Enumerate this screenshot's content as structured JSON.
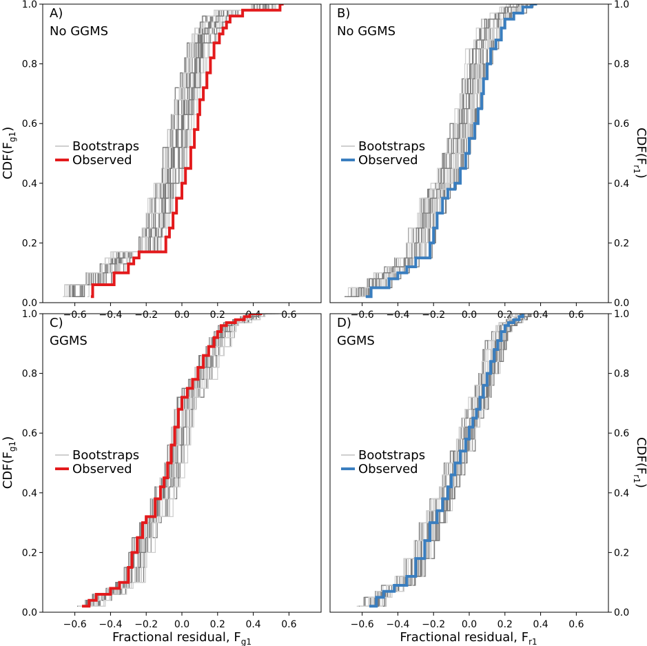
{
  "shared": {
    "xlabel": "Fractional residual, F",
    "xticks": [
      -0.6,
      -0.4,
      -0.2,
      0.0,
      0.2,
      0.4,
      0.6
    ],
    "xtick_labels": [
      "−0.6",
      "−0.4",
      "−0.2",
      "0.0",
      "0.2",
      "0.4",
      "0.6"
    ],
    "yticks": [
      0.0,
      0.2,
      0.4,
      0.6,
      0.8,
      1.0
    ],
    "ytick_labels": [
      "0.0",
      "0.2",
      "0.4",
      "0.6",
      "0.8",
      "1.0"
    ],
    "xlim": [
      -0.78,
      0.78
    ],
    "ylim": [
      0.0,
      1.0
    ],
    "legend": {
      "bootstraps": "Bootstraps",
      "observed": "Observed"
    },
    "colors": {
      "red": "#e31a1c",
      "blue": "#3a7ebf",
      "boot_dark": "#7a7a7a",
      "boot_light": "#cfcfcf"
    }
  },
  "chart_data": [
    {
      "panel": "A",
      "label": "A)",
      "subtitle": "No GGMS",
      "type": "line",
      "ylabel": "CDF(F",
      "ylabel_sub": "g1",
      "ylabel_end": ")",
      "xlabel_sub": "g1",
      "observed_color": "#e31a1c",
      "series": [
        {
          "name": "Observed",
          "x": [
            -0.51,
            -0.5,
            -0.45,
            -0.38,
            -0.36,
            -0.3,
            -0.27,
            -0.24,
            -0.2,
            -0.09,
            -0.07,
            -0.05,
            -0.03,
            0.0,
            0.02,
            0.05,
            0.07,
            0.09,
            0.1,
            0.12,
            0.14,
            0.16,
            0.18,
            0.21,
            0.23,
            0.25,
            0.27,
            0.3,
            0.34,
            0.38,
            0.45,
            0.48,
            0.55,
            0.57
          ],
          "y": [
            0.02,
            0.06,
            0.06,
            0.1,
            0.1,
            0.13,
            0.15,
            0.17,
            0.17,
            0.22,
            0.25,
            0.3,
            0.35,
            0.4,
            0.45,
            0.52,
            0.58,
            0.63,
            0.68,
            0.72,
            0.77,
            0.82,
            0.87,
            0.9,
            0.92,
            0.94,
            0.96,
            0.96,
            0.98,
            0.98,
            0.98,
            0.98,
            1.0,
            1.0
          ]
        }
      ],
      "bootstrap": {
        "count": 28,
        "center_shift": -0.08,
        "spread": 0.06
      }
    },
    {
      "panel": "B",
      "label": "B)",
      "subtitle": "No GGMS",
      "type": "line",
      "ylabel": "CDF(F",
      "ylabel_sub": "r1",
      "ylabel_end": ")",
      "xlabel_sub": "r1",
      "observed_color": "#3a7ebf",
      "series": [
        {
          "name": "Observed",
          "x": [
            -0.58,
            -0.55,
            -0.5,
            -0.45,
            -0.4,
            -0.35,
            -0.3,
            -0.25,
            -0.22,
            -0.2,
            -0.18,
            -0.15,
            -0.12,
            -0.08,
            -0.05,
            -0.02,
            0.0,
            0.03,
            0.05,
            0.07,
            0.08,
            0.1,
            0.12,
            0.15,
            0.18,
            0.2,
            0.25,
            0.3,
            0.35,
            0.38
          ],
          "y": [
            0.02,
            0.05,
            0.05,
            0.08,
            0.1,
            0.12,
            0.15,
            0.15,
            0.2,
            0.25,
            0.3,
            0.35,
            0.38,
            0.4,
            0.45,
            0.5,
            0.55,
            0.6,
            0.65,
            0.7,
            0.75,
            0.8,
            0.85,
            0.88,
            0.92,
            0.95,
            0.97,
            0.99,
            1.0,
            1.0
          ]
        }
      ],
      "bootstrap": {
        "count": 28,
        "center_shift": -0.06,
        "spread": 0.06
      }
    },
    {
      "panel": "C",
      "label": "C)",
      "subtitle": "GGMS",
      "type": "line",
      "ylabel": "CDF(F",
      "ylabel_sub": "g1",
      "ylabel_end": ")",
      "xlabel_sub": "g1",
      "observed_color": "#e31a1c",
      "series": [
        {
          "name": "Observed",
          "x": [
            -0.56,
            -0.52,
            -0.48,
            -0.4,
            -0.35,
            -0.3,
            -0.28,
            -0.25,
            -0.22,
            -0.2,
            -0.15,
            -0.12,
            -0.1,
            -0.08,
            -0.06,
            -0.04,
            -0.02,
            0.0,
            0.03,
            0.06,
            0.09,
            0.12,
            0.15,
            0.18,
            0.2,
            0.22,
            0.25,
            0.3,
            0.35,
            0.38,
            0.45
          ],
          "y": [
            0.02,
            0.04,
            0.06,
            0.08,
            0.1,
            0.15,
            0.2,
            0.25,
            0.3,
            0.32,
            0.38,
            0.42,
            0.45,
            0.5,
            0.56,
            0.62,
            0.68,
            0.72,
            0.75,
            0.78,
            0.82,
            0.86,
            0.89,
            0.92,
            0.94,
            0.96,
            0.97,
            0.98,
            0.99,
            1.0,
            1.0
          ]
        }
      ],
      "bootstrap": {
        "count": 28,
        "center_shift": 0.04,
        "spread": 0.05
      }
    },
    {
      "panel": "D",
      "label": "D)",
      "subtitle": "GGMS",
      "type": "line",
      "ylabel": "CDF(F",
      "ylabel_sub": "r1",
      "ylabel_end": ")",
      "xlabel_sub": "r1",
      "observed_color": "#3a7ebf",
      "series": [
        {
          "name": "Observed",
          "x": [
            -0.56,
            -0.52,
            -0.48,
            -0.42,
            -0.35,
            -0.3,
            -0.25,
            -0.22,
            -0.18,
            -0.15,
            -0.12,
            -0.1,
            -0.08,
            -0.05,
            -0.02,
            0.0,
            0.02,
            0.04,
            0.06,
            0.08,
            0.1,
            0.12,
            0.14,
            0.16,
            0.18,
            0.2,
            0.22,
            0.25,
            0.28,
            0.3
          ],
          "y": [
            0.02,
            0.05,
            0.07,
            0.09,
            0.12,
            0.18,
            0.24,
            0.3,
            0.34,
            0.38,
            0.42,
            0.46,
            0.5,
            0.54,
            0.58,
            0.62,
            0.65,
            0.68,
            0.72,
            0.76,
            0.8,
            0.84,
            0.88,
            0.91,
            0.94,
            0.96,
            0.97,
            0.98,
            0.99,
            1.0
          ]
        }
      ],
      "bootstrap": {
        "count": 28,
        "center_shift": 0.0,
        "spread": 0.05
      }
    }
  ]
}
